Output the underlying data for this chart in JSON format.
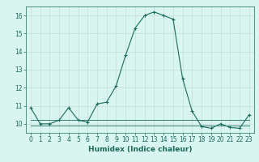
{
  "xlabel": "Humidex (Indice chaleur)",
  "x": [
    0,
    1,
    2,
    3,
    4,
    5,
    6,
    7,
    8,
    9,
    10,
    11,
    12,
    13,
    14,
    15,
    16,
    17,
    18,
    19,
    20,
    21,
    22,
    23
  ],
  "y_main": [
    10.9,
    10.0,
    10.0,
    10.2,
    10.9,
    10.2,
    10.1,
    11.1,
    11.2,
    12.1,
    13.8,
    15.3,
    16.0,
    16.2,
    16.0,
    15.8,
    12.5,
    10.7,
    9.85,
    9.75,
    10.0,
    9.8,
    9.75,
    10.5
  ],
  "y_flat1": [
    10.2,
    10.2,
    10.2,
    10.2,
    10.2,
    10.2,
    10.2,
    10.2,
    10.2,
    10.2,
    10.2,
    10.2,
    10.2,
    10.2,
    10.2,
    10.2,
    10.2,
    10.2,
    10.2,
    10.2,
    10.2,
    10.2,
    10.2,
    10.2
  ],
  "y_flat2": [
    9.9,
    9.9,
    9.9,
    9.9,
    9.9,
    9.9,
    9.9,
    9.9,
    9.9,
    9.9,
    9.9,
    9.9,
    9.9,
    9.9,
    9.9,
    9.9,
    9.9,
    9.9,
    9.9,
    9.9,
    9.9,
    9.9,
    9.9,
    9.9
  ],
  "line_color": "#1a6b5a",
  "bg_color": "#d8f5f0",
  "grid_color": "#c8dcd8",
  "ylim": [
    9.5,
    16.5
  ],
  "yticks": [
    10,
    11,
    12,
    13,
    14,
    15,
    16
  ],
  "xticks": [
    0,
    1,
    2,
    3,
    4,
    5,
    6,
    7,
    8,
    9,
    10,
    11,
    12,
    13,
    14,
    15,
    16,
    17,
    18,
    19,
    20,
    21,
    22,
    23
  ],
  "tick_fontsize": 5.5,
  "xlabel_fontsize": 6.5
}
